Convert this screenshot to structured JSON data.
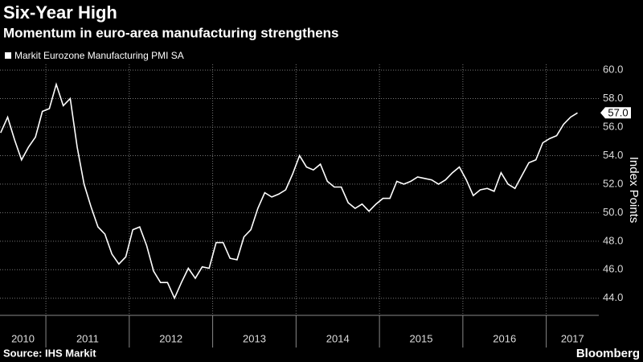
{
  "chart_data": {
    "type": "line",
    "title": "Six-Year High",
    "subtitle": "Momentum in euro-area manufacturing strengthens",
    "y_label": "Index Points",
    "source": "Source: IHS Markit",
    "brand": "Bloomberg",
    "last_label": "57.0",
    "grid": true,
    "xlim": [
      2010.45,
      2017.63
    ],
    "xticks": [
      2011,
      2012,
      2013,
      2014,
      2015,
      2016,
      2017
    ],
    "year_labels": [
      2010,
      2011,
      2012,
      2013,
      2014,
      2015,
      2016,
      2017
    ],
    "ylim": [
      42.8,
      60.4
    ],
    "yticks": [
      {
        "value": 44,
        "label": "44.0"
      },
      {
        "value": 46,
        "label": "46.0"
      },
      {
        "value": 48,
        "label": "48.0"
      },
      {
        "value": 50,
        "label": "50.0"
      },
      {
        "value": 52,
        "label": "52.0"
      },
      {
        "value": 54,
        "label": "54.0"
      },
      {
        "value": 56,
        "label": "56.0"
      },
      {
        "value": 58,
        "label": "58.0"
      },
      {
        "value": 60,
        "label": "60.0"
      }
    ],
    "x": [
      2010.458,
      2010.542,
      2010.625,
      2010.708,
      2010.792,
      2010.875,
      2010.958,
      2011.042,
      2011.125,
      2011.208,
      2011.292,
      2011.375,
      2011.458,
      2011.542,
      2011.625,
      2011.708,
      2011.792,
      2011.875,
      2011.958,
      2012.042,
      2012.125,
      2012.208,
      2012.292,
      2012.375,
      2012.458,
      2012.542,
      2012.625,
      2012.708,
      2012.792,
      2012.875,
      2012.958,
      2013.042,
      2013.125,
      2013.208,
      2013.292,
      2013.375,
      2013.458,
      2013.542,
      2013.625,
      2013.708,
      2013.792,
      2013.875,
      2013.958,
      2014.042,
      2014.125,
      2014.208,
      2014.292,
      2014.375,
      2014.458,
      2014.542,
      2014.625,
      2014.708,
      2014.792,
      2014.875,
      2014.958,
      2015.042,
      2015.125,
      2015.208,
      2015.292,
      2015.375,
      2015.458,
      2015.542,
      2015.625,
      2015.708,
      2015.792,
      2015.875,
      2015.958,
      2016.042,
      2016.125,
      2016.208,
      2016.292,
      2016.375,
      2016.458,
      2016.542,
      2016.625,
      2016.708,
      2016.792,
      2016.875,
      2016.958,
      2017.042,
      2017.125,
      2017.208,
      2017.292,
      2017.375
    ],
    "series": [
      {
        "name": "Markit Eurozone Manufacturing PMI SA",
        "color": "#ffffff",
        "values": [
          55.6,
          56.7,
          55.1,
          53.7,
          54.6,
          55.3,
          57.1,
          57.3,
          59.0,
          57.5,
          58.0,
          54.6,
          52.0,
          50.4,
          49.0,
          48.5,
          47.1,
          46.4,
          46.9,
          48.8,
          49.0,
          47.7,
          45.9,
          45.1,
          45.1,
          44.0,
          45.1,
          46.1,
          45.4,
          46.2,
          46.1,
          47.9,
          47.9,
          46.8,
          46.7,
          48.3,
          48.8,
          50.3,
          51.4,
          51.1,
          51.3,
          51.6,
          52.7,
          54.0,
          53.2,
          53.0,
          53.4,
          52.2,
          51.8,
          51.8,
          50.7,
          50.3,
          50.6,
          50.1,
          50.6,
          51.0,
          51.0,
          52.2,
          52.0,
          52.2,
          52.5,
          52.4,
          52.3,
          52.0,
          52.3,
          52.8,
          53.2,
          52.3,
          51.2,
          51.6,
          51.7,
          51.5,
          52.8,
          52.0,
          51.7,
          52.6,
          53.5,
          53.7,
          54.9,
          55.2,
          55.4,
          56.2,
          56.7,
          57.0
        ]
      }
    ]
  }
}
